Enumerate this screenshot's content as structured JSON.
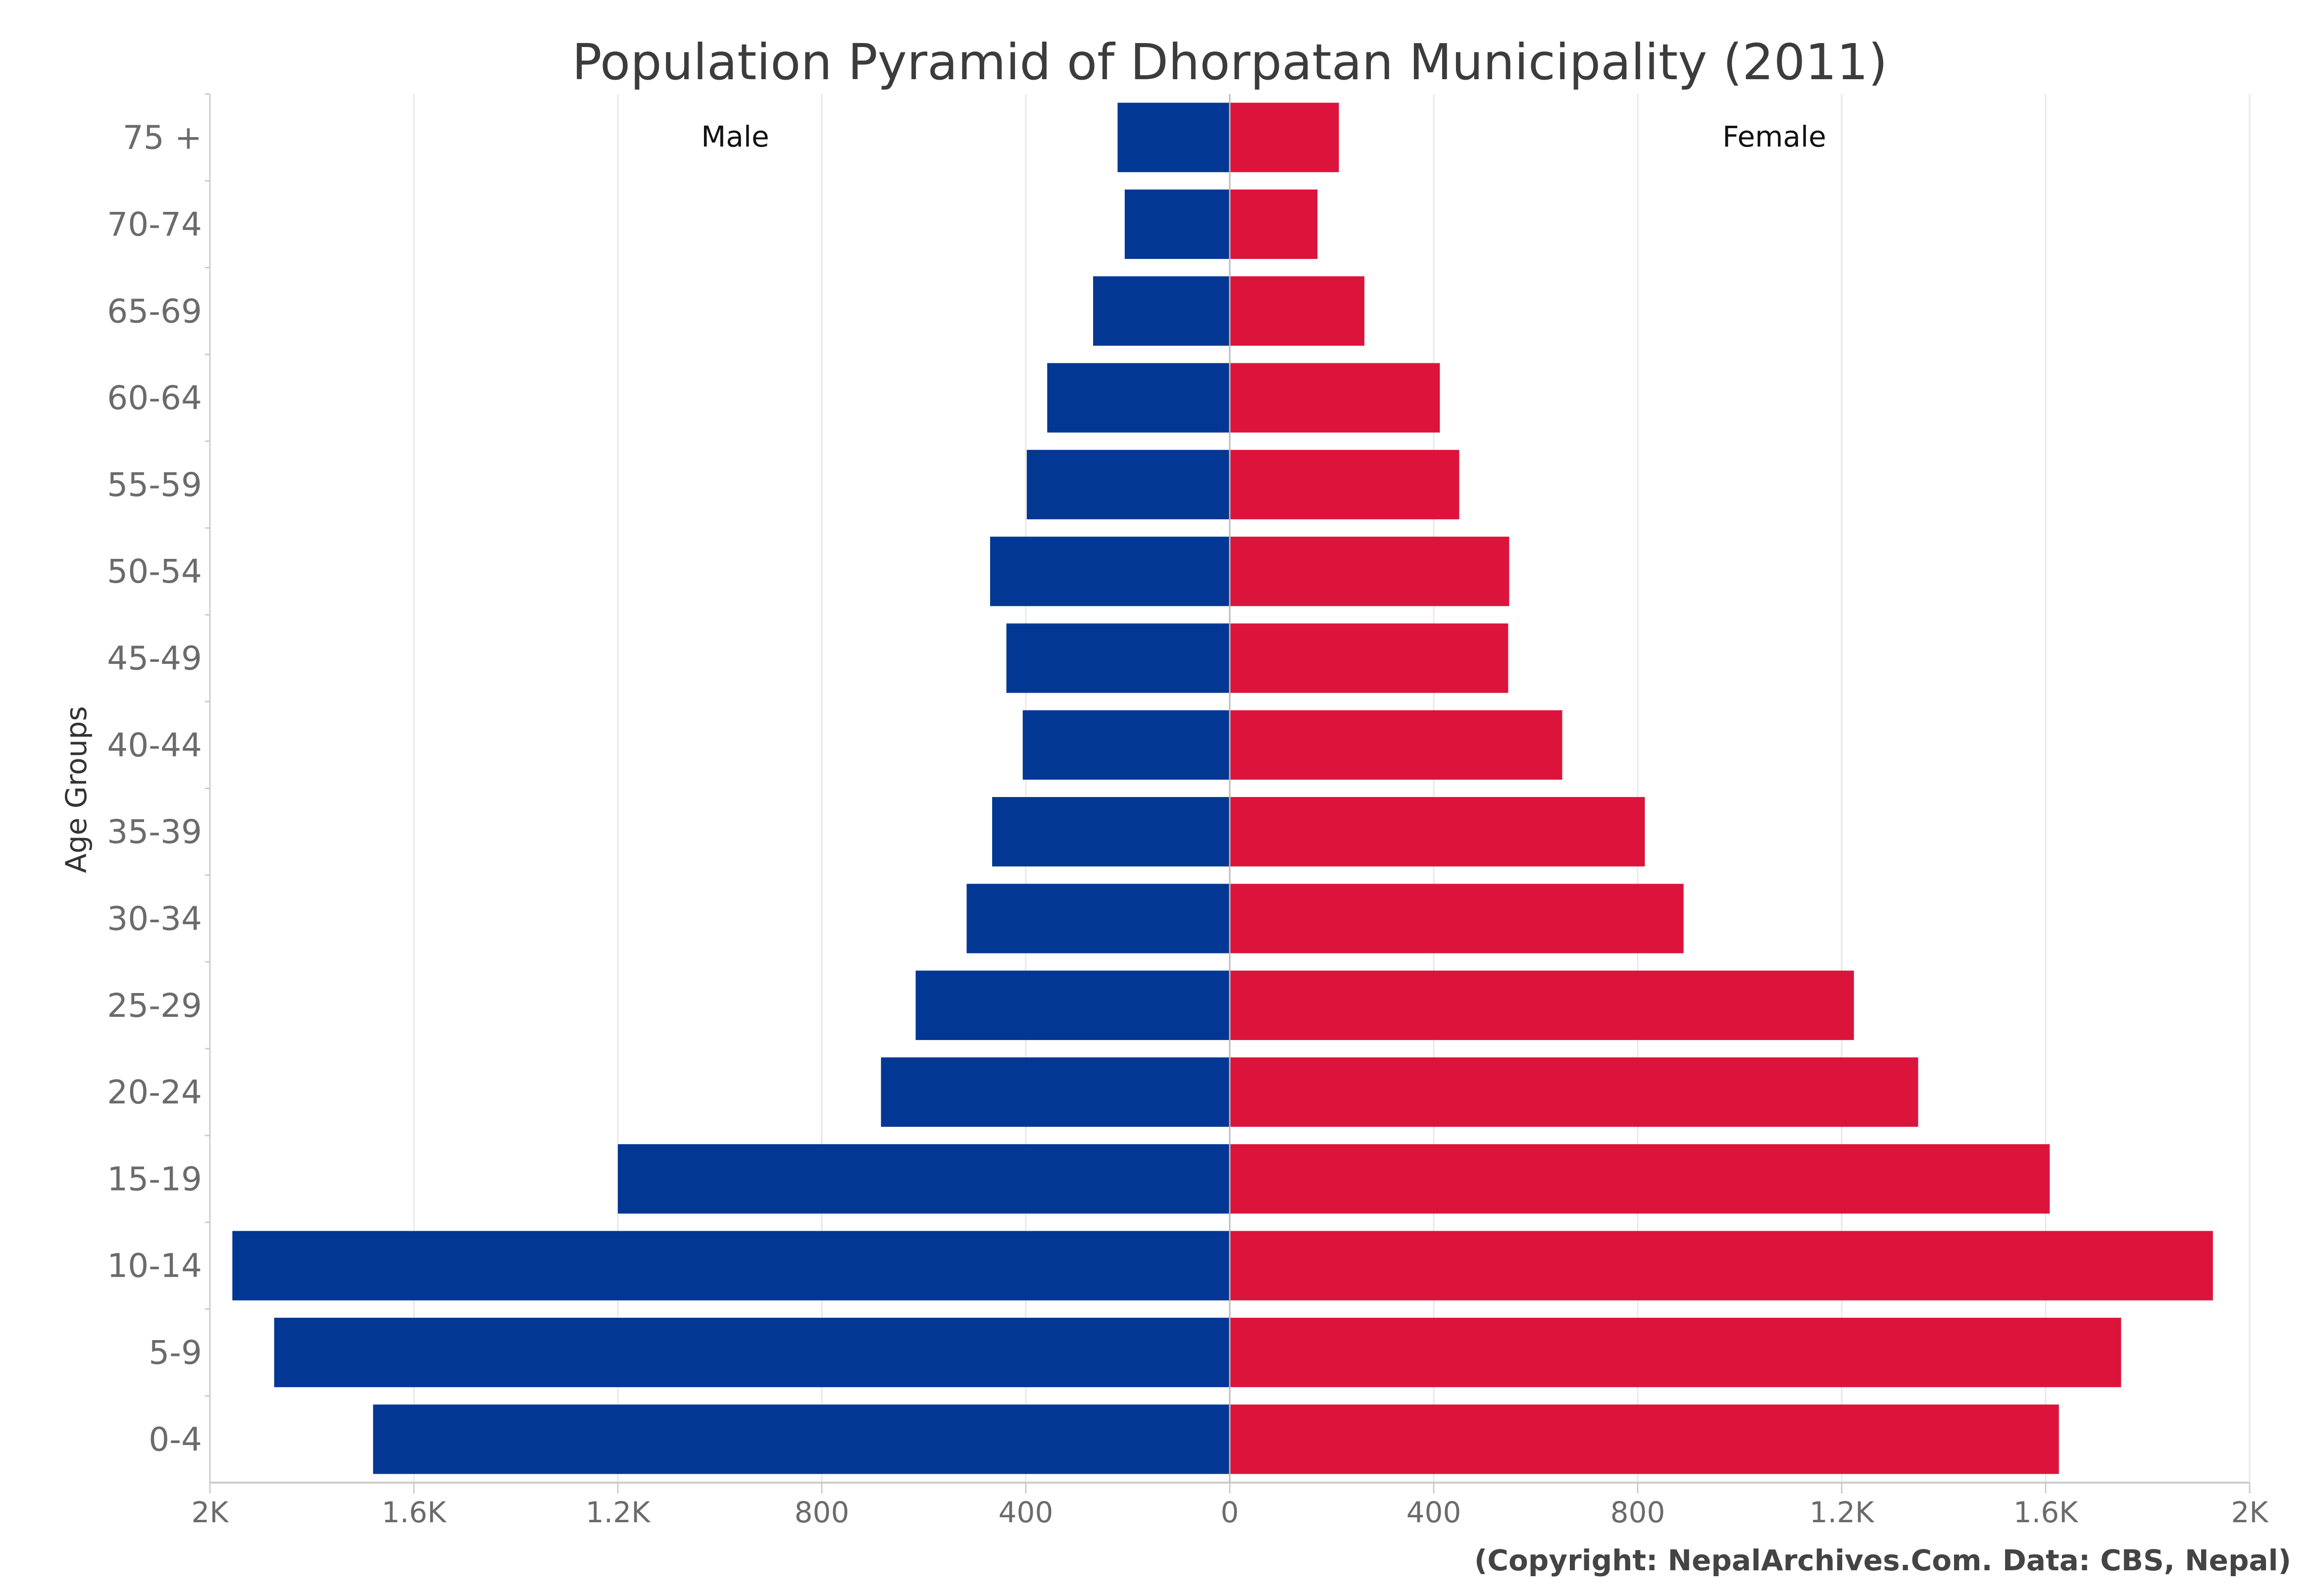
{
  "chart_data": {
    "type": "bar",
    "orientation": "horizontal-diverging",
    "title": "Population Pyramid of Dhorpatan Municipality (2011)",
    "ylabel": "Age Groups",
    "xlabel": "",
    "credit": "(Copyright: NepalArchives.Com. Data: CBS, Nepal)",
    "categories": [
      "75 +",
      "70-74",
      "65-69",
      "60-64",
      "55-59",
      "50-54",
      "45-49",
      "40-44",
      "35-39",
      "30-34",
      "25-29",
      "20-24",
      "15-19",
      "10-14",
      "5-9",
      "0-4"
    ],
    "series": [
      {
        "name": "Male",
        "color": "#023893",
        "side": "left",
        "values": [
          220,
          206,
          268,
          358,
          398,
          470,
          438,
          406,
          466,
          516,
          616,
          684,
          1200,
          1956,
          1874,
          1680
        ]
      },
      {
        "name": "Female",
        "color": "#dc143c",
        "side": "right",
        "values": [
          214,
          172,
          264,
          412,
          450,
          548,
          546,
          652,
          814,
          890,
          1224,
          1350,
          1608,
          1928,
          1748,
          1626
        ]
      }
    ],
    "xlim": [
      -2000,
      2000
    ],
    "xticks": [
      {
        "value": -2000,
        "label": "2K"
      },
      {
        "value": -1600,
        "label": "1.6K"
      },
      {
        "value": -1200,
        "label": "1.2K"
      },
      {
        "value": -800,
        "label": "800"
      },
      {
        "value": -400,
        "label": "400"
      },
      {
        "value": 0,
        "label": "0"
      },
      {
        "value": 400,
        "label": "400"
      },
      {
        "value": 800,
        "label": "800"
      },
      {
        "value": 1200,
        "label": "1.2K"
      },
      {
        "value": 1600,
        "label": "1.6K"
      },
      {
        "value": 2000,
        "label": "2K"
      }
    ],
    "grid": true,
    "legend": "none"
  }
}
